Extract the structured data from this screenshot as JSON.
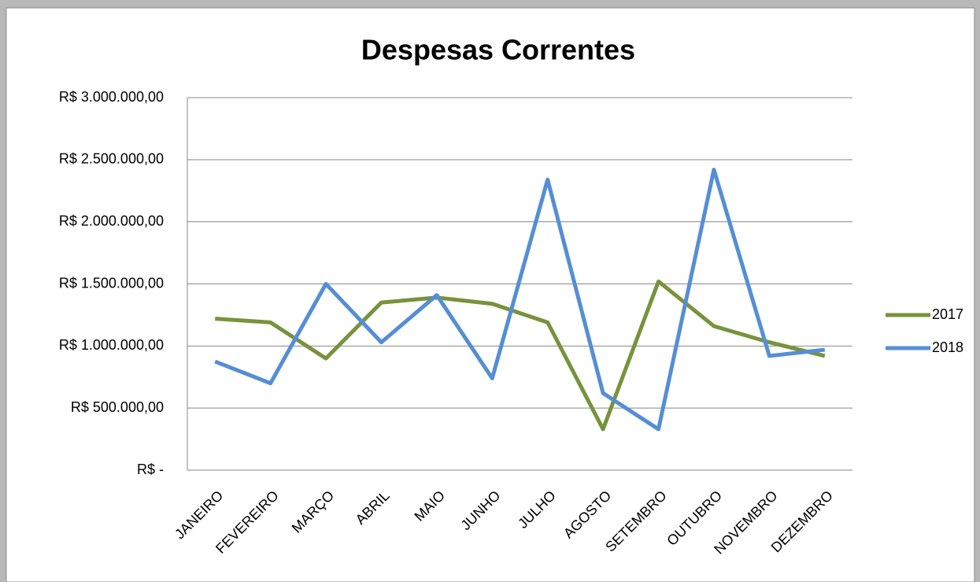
{
  "chart_data": {
    "type": "line",
    "title": "Despesas Correntes",
    "categories": [
      "JANEIRO",
      "FEVEREIRO",
      "MARÇO",
      "ABRIL",
      "MAIO",
      "JUNHO",
      "JULHO",
      "AGOSTO",
      "SETEMBRO",
      "OUTUBRO",
      "NOVEMBRO",
      "DEZEMBRO"
    ],
    "series": [
      {
        "name": "2017",
        "color": "#77933c",
        "values": [
          1220000,
          1190000,
          900000,
          1350000,
          1390000,
          1340000,
          1190000,
          330000,
          1520000,
          1160000,
          1030000,
          920000
        ]
      },
      {
        "name": "2018",
        "color": "#558ed5",
        "values": [
          875000,
          700000,
          1500000,
          1030000,
          1410000,
          740000,
          2340000,
          620000,
          330000,
          2420000,
          920000,
          970000
        ]
      }
    ],
    "ylim": [
      0,
      3000000
    ],
    "yticks": [
      {
        "value": 0,
        "label": "R$ -"
      },
      {
        "value": 500000,
        "label": "R$ 500.000,00"
      },
      {
        "value": 1000000,
        "label": "R$ 1.000.000,00"
      },
      {
        "value": 1500000,
        "label": "R$ 1.500.000,00"
      },
      {
        "value": 2000000,
        "label": "R$ 2.000.000,00"
      },
      {
        "value": 2500000,
        "label": "R$ 2.500.000,00"
      },
      {
        "value": 3000000,
        "label": "R$ 3.000.000,00"
      }
    ],
    "grid": true,
    "legend": "right"
  }
}
